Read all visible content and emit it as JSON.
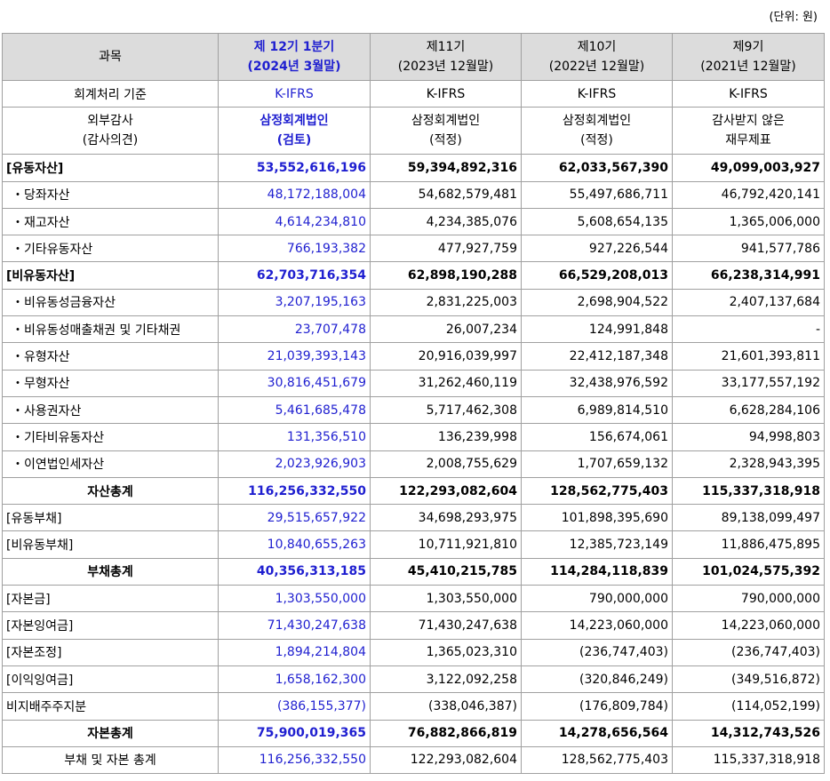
{
  "unit": "(단위: 원)",
  "header": {
    "subject": "과목",
    "cols": [
      {
        "line1": "제 12기 1분기",
        "line2": "(2024년 3월말)"
      },
      {
        "line1": "제11기",
        "line2": "(2023년 12월말)"
      },
      {
        "line1": "제10기",
        "line2": "(2022년 12월말)"
      },
      {
        "line1": "제9기",
        "line2": "(2021년 12월말)"
      }
    ]
  },
  "standard": {
    "label": "회계처리 기준",
    "values": [
      "K-IFRS",
      "K-IFRS",
      "K-IFRS",
      "K-IFRS"
    ]
  },
  "audit": {
    "label1": "외부감사",
    "label2": "(감사의견)",
    "values": [
      {
        "line1": "삼정회계법인",
        "line2": "(검토)"
      },
      {
        "line1": "삼정회계법인",
        "line2": "(적정)"
      },
      {
        "line1": "삼정회계법인",
        "line2": "(적정)"
      },
      {
        "line1": "감사받지 않은",
        "line2": "재무제표"
      }
    ]
  },
  "rows": [
    {
      "label": "[유동자산]",
      "values": [
        "53,552,616,196",
        "59,394,892,316",
        "62,033,567,390",
        "49,099,003,927"
      ]
    },
    {
      "label": "・당좌자산",
      "values": [
        "48,172,188,004",
        "54,682,579,481",
        "55,497,686,711",
        "46,792,420,141"
      ]
    },
    {
      "label": "・재고자산",
      "values": [
        "4,614,234,810",
        "4,234,385,076",
        "5,608,654,135",
        "1,365,006,000"
      ]
    },
    {
      "label": "・기타유동자산",
      "values": [
        "766,193,382",
        "477,927,759",
        "927,226,544",
        "941,577,786"
      ]
    },
    {
      "label": "[비유동자산]",
      "values": [
        "62,703,716,354",
        "62,898,190,288",
        "66,529,208,013",
        "66,238,314,991"
      ]
    },
    {
      "label": "・비유동성금융자산",
      "values": [
        "3,207,195,163",
        "2,831,225,003",
        "2,698,904,522",
        "2,407,137,684"
      ]
    },
    {
      "label": "・비유동성매출채권 및 기타채권",
      "values": [
        "23,707,478",
        "26,007,234",
        "124,991,848",
        "-"
      ]
    },
    {
      "label": "・유형자산",
      "values": [
        "21,039,393,143",
        "20,916,039,997",
        "22,412,187,348",
        "21,601,393,811"
      ]
    },
    {
      "label": "・무형자산",
      "values": [
        "30,816,451,679",
        "31,262,460,119",
        "32,438,976,592",
        "33,177,557,192"
      ]
    },
    {
      "label": "・사용권자산",
      "values": [
        "5,461,685,478",
        "5,717,462,308",
        "6,989,814,510",
        "6,628,284,106"
      ]
    },
    {
      "label": "・기타비유동자산",
      "values": [
        "131,356,510",
        "136,239,998",
        "156,674,061",
        "94,998,803"
      ]
    },
    {
      "label": "・이연법인세자산",
      "values": [
        "2,023,926,903",
        "2,008,755,629",
        "1,707,659,132",
        "2,328,943,395"
      ]
    },
    {
      "label": "자산총계",
      "values": [
        "116,256,332,550",
        "122,293,082,604",
        "128,562,775,403",
        "115,337,318,918"
      ]
    },
    {
      "label": "[유동부채]",
      "values": [
        "29,515,657,922",
        "34,698,293,975",
        "101,898,395,690",
        "89,138,099,497"
      ]
    },
    {
      "label": "[비유동부채]",
      "values": [
        "10,840,655,263",
        "10,711,921,810",
        "12,385,723,149",
        "11,886,475,895"
      ]
    },
    {
      "label": "부채총계",
      "values": [
        "40,356,313,185",
        "45,410,215,785",
        "114,284,118,839",
        "101,024,575,392"
      ]
    },
    {
      "label": "[자본금]",
      "values": [
        "1,303,550,000",
        "1,303,550,000",
        "790,000,000",
        "790,000,000"
      ]
    },
    {
      "label": "[자본잉여금]",
      "values": [
        "71,430,247,638",
        "71,430,247,638",
        "14,223,060,000",
        "14,223,060,000"
      ]
    },
    {
      "label": "[자본조정]",
      "values": [
        "1,894,214,804",
        "1,365,023,310",
        "(236,747,403)",
        "(236,747,403)"
      ]
    },
    {
      "label": "[이익잉여금]",
      "values": [
        "1,658,162,300",
        "3,122,092,258",
        "(320,846,249)",
        "(349,516,872)"
      ]
    },
    {
      "label": "비지배주주지분",
      "values": [
        "(386,155,377)",
        "(338,046,387)",
        "(176,809,784)",
        "(114,052,199)"
      ]
    },
    {
      "label": "자본총계",
      "values": [
        "75,900,019,365",
        "76,882,866,819",
        "14,278,656,564",
        "14,312,743,526"
      ]
    },
    {
      "label": "부채 및 자본 총계",
      "values": [
        "116,256,332,550",
        "122,293,082,604",
        "128,562,775,403",
        "115,337,318,918"
      ]
    }
  ]
}
